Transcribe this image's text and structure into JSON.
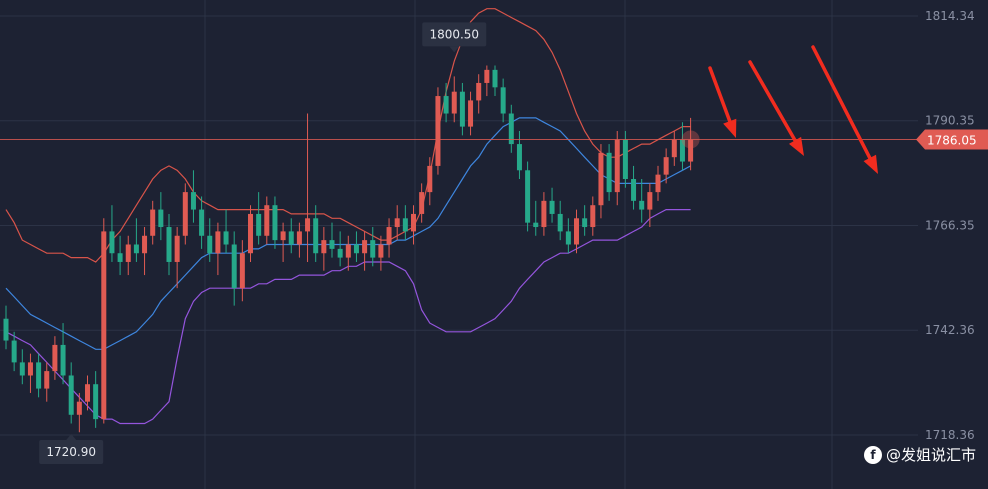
{
  "chart_data": {
    "type": "candlestick",
    "title": "",
    "xlabel": "",
    "ylabel": "",
    "y_ticks": [
      1814.34,
      1790.35,
      1766.35,
      1742.36,
      1718.36
    ],
    "y_tick_labels": [
      "1814.34",
      "1790.35",
      "1766.35",
      "1742.36",
      "1718.36"
    ],
    "ylim": [
      1706,
      1818
    ],
    "grid": true,
    "current_price": {
      "value": 1786.05,
      "label": "1786.05",
      "color": "#e05b53"
    },
    "annotations": [
      {
        "label": "1800.50",
        "value": 1800.5,
        "index": 55
      },
      {
        "label": "1720.90",
        "value": 1720.9,
        "index": 8
      }
    ],
    "colors": {
      "up": "#e05b53",
      "down": "#26a98a",
      "upper_band": "#d8544a",
      "middle_band": "#3e86df",
      "lower_band": "#9455dd",
      "arrows": "#f12c1f"
    },
    "candles": [
      [
        1745,
        1748,
        1738,
        1740
      ],
      [
        1740,
        1742,
        1733,
        1735
      ],
      [
        1735,
        1738,
        1730,
        1732
      ],
      [
        1732,
        1737,
        1728,
        1735
      ],
      [
        1735,
        1737,
        1727,
        1729
      ],
      [
        1729,
        1735,
        1726,
        1733
      ],
      [
        1733,
        1741,
        1731,
        1739
      ],
      [
        1739,
        1744,
        1730,
        1732
      ],
      [
        1732,
        1735,
        1721,
        1723
      ],
      [
        1723,
        1728,
        1719,
        1726
      ],
      [
        1726,
        1732,
        1724,
        1730
      ],
      [
        1730,
        1733,
        1720,
        1722
      ],
      [
        1722,
        1768,
        1721,
        1765
      ],
      [
        1765,
        1771,
        1758,
        1760
      ],
      [
        1760,
        1764,
        1755,
        1758
      ],
      [
        1758,
        1764,
        1755,
        1762
      ],
      [
        1762,
        1768,
        1758,
        1760
      ],
      [
        1760,
        1766,
        1755,
        1764
      ],
      [
        1764,
        1772,
        1762,
        1770
      ],
      [
        1770,
        1774,
        1763,
        1766
      ],
      [
        1766,
        1769,
        1755,
        1758
      ],
      [
        1758,
        1766,
        1752,
        1764
      ],
      [
        1764,
        1776,
        1762,
        1774
      ],
      [
        1774,
        1779,
        1767,
        1770
      ],
      [
        1770,
        1773,
        1761,
        1764
      ],
      [
        1764,
        1768,
        1758,
        1760
      ],
      [
        1760,
        1767,
        1755,
        1765
      ],
      [
        1765,
        1770,
        1760,
        1762
      ],
      [
        1762,
        1765,
        1748,
        1752
      ],
      [
        1752,
        1763,
        1749,
        1760
      ],
      [
        1760,
        1771,
        1758,
        1769
      ],
      [
        1769,
        1774,
        1762,
        1764
      ],
      [
        1764,
        1773,
        1762,
        1771
      ],
      [
        1771,
        1773,
        1761,
        1763
      ],
      [
        1763,
        1767,
        1758,
        1765
      ],
      [
        1765,
        1768,
        1760,
        1762
      ],
      [
        1762,
        1767,
        1759,
        1765
      ],
      [
        1765,
        1792,
        1758,
        1768
      ],
      [
        1768,
        1771,
        1758,
        1760
      ],
      [
        1760,
        1766,
        1756,
        1763
      ],
      [
        1763,
        1767,
        1759,
        1761
      ],
      [
        1761,
        1765,
        1757,
        1759
      ],
      [
        1759,
        1764,
        1756,
        1762
      ],
      [
        1762,
        1765,
        1758,
        1760
      ],
      [
        1760,
        1765,
        1756,
        1763
      ],
      [
        1763,
        1766,
        1757,
        1759
      ],
      [
        1759,
        1764,
        1756,
        1762
      ],
      [
        1762,
        1768,
        1759,
        1766
      ],
      [
        1766,
        1771,
        1763,
        1768
      ],
      [
        1768,
        1771,
        1763,
        1765
      ],
      [
        1765,
        1771,
        1762,
        1769
      ],
      [
        1769,
        1776,
        1767,
        1774
      ],
      [
        1774,
        1782,
        1771,
        1780
      ],
      [
        1780,
        1798,
        1778,
        1796
      ],
      [
        1796,
        1799,
        1790,
        1792
      ],
      [
        1792,
        1800.5,
        1790,
        1797
      ],
      [
        1797,
        1799,
        1787,
        1789
      ],
      [
        1789,
        1797,
        1787,
        1795
      ],
      [
        1795,
        1801,
        1792,
        1799
      ],
      [
        1799,
        1803,
        1796,
        1802
      ],
      [
        1802,
        1803,
        1796,
        1798
      ],
      [
        1798,
        1800,
        1790,
        1792
      ],
      [
        1792,
        1794,
        1783,
        1785
      ],
      [
        1785,
        1788,
        1777,
        1779
      ],
      [
        1779,
        1781,
        1765,
        1767
      ],
      [
        1767,
        1772,
        1764,
        1766
      ],
      [
        1766,
        1774,
        1764,
        1772
      ],
      [
        1772,
        1775,
        1767,
        1769
      ],
      [
        1769,
        1772,
        1763,
        1765
      ],
      [
        1765,
        1768,
        1760,
        1762
      ],
      [
        1762,
        1770,
        1760,
        1768
      ],
      [
        1768,
        1771,
        1764,
        1766
      ],
      [
        1766,
        1773,
        1764,
        1771
      ],
      [
        1771,
        1785,
        1768,
        1783
      ],
      [
        1783,
        1785,
        1772,
        1774
      ],
      [
        1774,
        1788,
        1771,
        1786
      ],
      [
        1786,
        1788,
        1775,
        1777
      ],
      [
        1777,
        1780,
        1770,
        1772
      ],
      [
        1772,
        1777,
        1767,
        1770
      ],
      [
        1770,
        1776,
        1766,
        1774
      ],
      [
        1774,
        1780,
        1772,
        1778
      ],
      [
        1778,
        1784,
        1776,
        1782
      ],
      [
        1782,
        1788,
        1780,
        1786
      ],
      [
        1786,
        1790,
        1779,
        1781
      ],
      [
        1781,
        1791,
        1779,
        1786
      ]
    ],
    "upper_band": [
      1770,
      1767,
      1763,
      1762,
      1761,
      1760,
      1760,
      1760,
      1759,
      1759,
      1759,
      1758,
      1760,
      1763,
      1765,
      1768,
      1771,
      1774,
      1777,
      1779,
      1780,
      1779,
      1777,
      1774,
      1772,
      1771,
      1770,
      1770,
      1770,
      1770,
      1770,
      1770,
      1770,
      1770,
      1770,
      1769,
      1769,
      1769,
      1769,
      1769,
      1768,
      1768,
      1767,
      1766,
      1765,
      1764,
      1763,
      1763,
      1764,
      1765,
      1766,
      1770,
      1778,
      1788,
      1797,
      1804,
      1809,
      1813,
      1815,
      1816,
      1816,
      1815,
      1814,
      1813,
      1812,
      1811,
      1809,
      1806,
      1802,
      1797,
      1792,
      1788,
      1785,
      1783,
      1782,
      1782,
      1783,
      1784,
      1785,
      1785,
      1786,
      1787,
      1788,
      1789,
      1789
    ],
    "middle_band": [
      1752,
      1750,
      1748,
      1746,
      1745,
      1744,
      1743,
      1742,
      1741,
      1740,
      1739,
      1738,
      1738,
      1739,
      1740,
      1741,
      1742,
      1744,
      1746,
      1749,
      1751,
      1753,
      1755,
      1757,
      1759,
      1760,
      1760,
      1760,
      1760,
      1760,
      1761,
      1761,
      1762,
      1762,
      1762,
      1762,
      1762,
      1762,
      1762,
      1762,
      1762,
      1762,
      1762,
      1762,
      1762,
      1762,
      1762,
      1762,
      1763,
      1763,
      1764,
      1765,
      1766,
      1768,
      1771,
      1774,
      1777,
      1780,
      1782,
      1785,
      1787,
      1789,
      1790,
      1791,
      1791,
      1791,
      1790,
      1789,
      1788,
      1786,
      1784,
      1782,
      1780,
      1778,
      1777,
      1776,
      1776,
      1776,
      1776,
      1776,
      1776,
      1777,
      1778,
      1779,
      1780
    ],
    "lower_band": [
      1742,
      1741,
      1740,
      1739,
      1737,
      1735,
      1733,
      1731,
      1729,
      1727,
      1725,
      1723,
      1722,
      1722,
      1721,
      1721,
      1721,
      1721,
      1722,
      1724,
      1726,
      1736,
      1745,
      1749,
      1751,
      1752,
      1752,
      1752,
      1752,
      1752,
      1752,
      1753,
      1753,
      1754,
      1754,
      1754,
      1755,
      1755,
      1755,
      1755,
      1756,
      1756,
      1757,
      1757,
      1758,
      1758,
      1758,
      1758,
      1757,
      1756,
      1753,
      1747,
      1744,
      1743,
      1742,
      1742,
      1742,
      1742,
      1743,
      1744,
      1745,
      1747,
      1749,
      1752,
      1754,
      1756,
      1758,
      1759,
      1760,
      1760,
      1761,
      1762,
      1763,
      1763,
      1763,
      1763,
      1764,
      1765,
      1766,
      1768,
      1769,
      1770,
      1770,
      1770,
      1770
    ]
  },
  "watermark": {
    "logo": "f",
    "text": "@发姐说汇市"
  }
}
